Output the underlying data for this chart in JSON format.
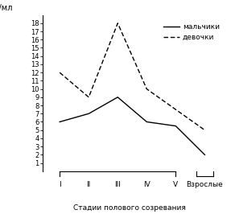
{
  "x_positions": [
    1,
    2,
    3,
    4,
    5,
    6
  ],
  "x_labels_stage": [
    "I",
    "II",
    "III",
    "IV",
    "V"
  ],
  "x_label_adult": "Взрослые",
  "boys_values": [
    6.0,
    7.0,
    9.0,
    6.0,
    5.5,
    2.0
  ],
  "girls_values": [
    12.0,
    9.0,
    18.0,
    10.0,
    7.5,
    5.0
  ],
  "ylabel": "нг/мл",
  "xlabel": "Стадии полового созревания",
  "legend_boys": "мальчики",
  "legend_girls": "девочки",
  "ylim": [
    0,
    19
  ],
  "yticks": [
    1,
    2,
    3,
    4,
    5,
    6,
    7,
    8,
    9,
    10,
    11,
    12,
    13,
    14,
    15,
    16,
    17,
    18
  ],
  "line_color": "#000000",
  "background_color": "#ffffff"
}
